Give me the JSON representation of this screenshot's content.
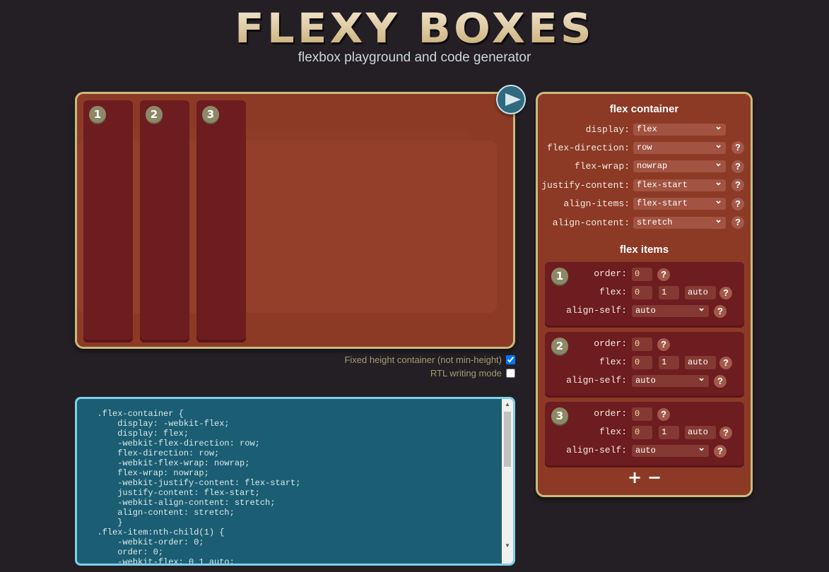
{
  "header": {
    "logo": "FLEXY BOXES",
    "subtitle": "flexbox playground and code generator"
  },
  "preview": {
    "items": [
      {
        "num": "1"
      },
      {
        "num": "2"
      },
      {
        "num": "3"
      }
    ]
  },
  "options": {
    "fixed_height_label": "Fixed height container (not min-height)",
    "fixed_height_checked": true,
    "rtl_label": "RTL writing mode",
    "rtl_checked": false
  },
  "code": "  .flex-container {\n      display: -webkit-flex;\n      display: flex;\n      -webkit-flex-direction: row;\n      flex-direction: row;\n      -webkit-flex-wrap: nowrap;\n      flex-wrap: nowrap;\n      -webkit-justify-content: flex-start;\n      justify-content: flex-start;\n      -webkit-align-content: stretch;\n      align-content: stretch;\n      }\n  .flex-item:nth-child(1) {\n      -webkit-order: 0;\n      order: 0;\n      -webkit-flex: 0 1 auto;",
  "panel": {
    "container_title": "flex container",
    "container_props": [
      {
        "label": "display:",
        "value": "flex",
        "help": false
      },
      {
        "label": "flex-direction:",
        "value": "row",
        "help": true
      },
      {
        "label": "flex-wrap:",
        "value": "nowrap",
        "help": true
      },
      {
        "label": "justify-content:",
        "value": "flex-start",
        "help": true
      },
      {
        "label": "align-items:",
        "value": "flex-start",
        "help": true
      },
      {
        "label": "align-content:",
        "value": "stretch",
        "help": true
      }
    ],
    "items_title": "flex items",
    "labels": {
      "order": "order:",
      "flex": "flex:",
      "align_self": "align-self:",
      "help": "?"
    },
    "items": [
      {
        "num": "1",
        "order": "0",
        "grow": "0",
        "shrink": "1",
        "basis": "auto",
        "align_self": "auto"
      },
      {
        "num": "2",
        "order": "0",
        "grow": "0",
        "shrink": "1",
        "basis": "auto",
        "align_self": "auto"
      },
      {
        "num": "3",
        "order": "0",
        "grow": "0",
        "shrink": "1",
        "basis": "auto",
        "align_self": "auto"
      }
    ],
    "add_label": "+",
    "remove_label": "−"
  }
}
